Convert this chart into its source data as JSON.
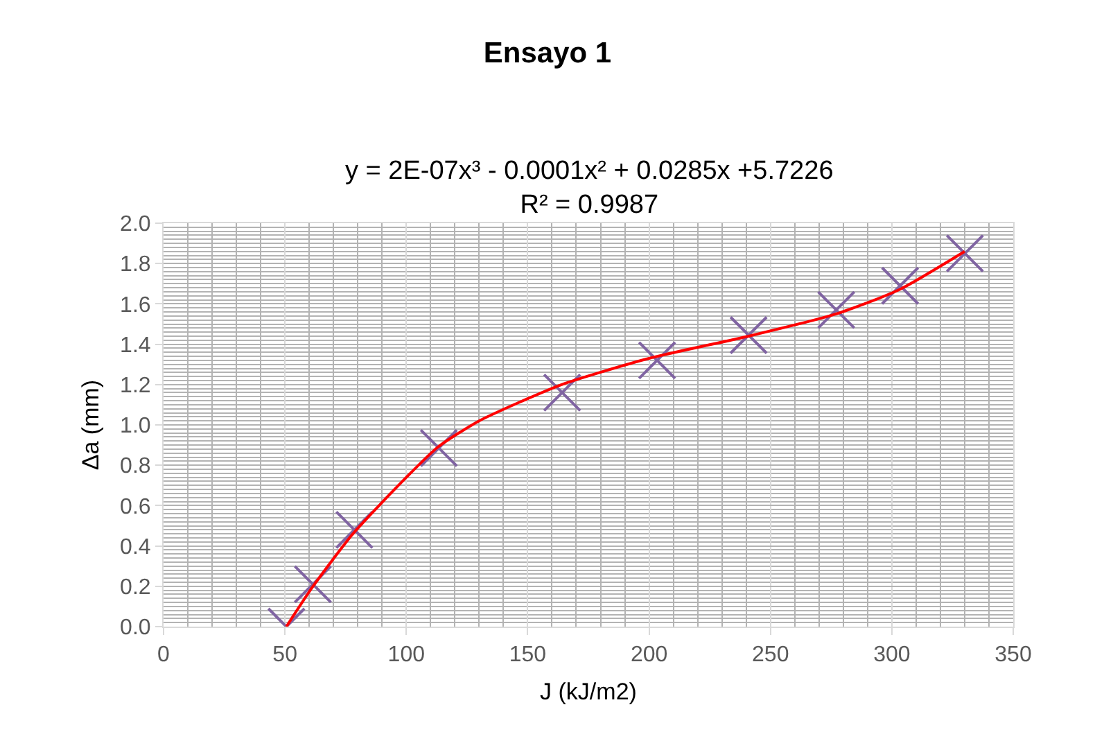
{
  "chart_data": {
    "type": "scatter",
    "title": "Ensayo 1",
    "subtitle": "y = 2E-07x³ - 0.0001x² + 0.0285x +5.7226\nR² = 0.9987",
    "xlabel": "J (kJ/m2)",
    "ylabel": "Δa (mm)",
    "x": [
      50.6,
      61.5,
      78.6,
      113.4,
      164.2,
      203.3,
      241,
      277.1,
      303.4,
      330.1
    ],
    "series": [
      {
        "color": "#8064a2",
        "values": [
          0.0,
          0.21,
          0.48,
          0.885,
          1.16,
          1.32,
          1.445,
          1.57,
          1.69,
          1.85
        ],
        "marker": "cross"
      },
      {
        "type": "line",
        "color": "#ff0000",
        "x": [
          50.6,
          61,
          78,
          100,
          113,
          130,
          164,
          200,
          241,
          277,
          303,
          330
        ],
        "values": [
          0.0,
          0.19,
          0.46,
          0.74,
          0.89,
          1.02,
          1.2,
          1.33,
          1.44,
          1.55,
          1.67,
          1.86
        ],
        "line_style": "solid"
      }
    ],
    "xlim": [
      0,
      350
    ],
    "xticks": [
      0,
      50,
      100,
      150,
      200,
      250,
      300,
      350
    ],
    "ylim": [
      0,
      2.0
    ],
    "yticks": [
      {
        "value": 0,
        "label": "0.0"
      },
      {
        "value": 0.2,
        "label": "0.2"
      },
      {
        "value": 0.4,
        "label": "0.4"
      },
      {
        "value": 0.6,
        "label": "0.6"
      },
      {
        "value": 0.8,
        "label": "0.8"
      },
      {
        "value": 1.0,
        "label": "1.0"
      },
      {
        "value": 1.2,
        "label": "1.2"
      },
      {
        "value": 1.4,
        "label": "1.4"
      },
      {
        "value": 1.6,
        "label": "1.6"
      },
      {
        "value": 1.8,
        "label": "1.8"
      },
      {
        "value": 2.0,
        "label": "2.0"
      }
    ],
    "grid": true,
    "legend": false
  }
}
